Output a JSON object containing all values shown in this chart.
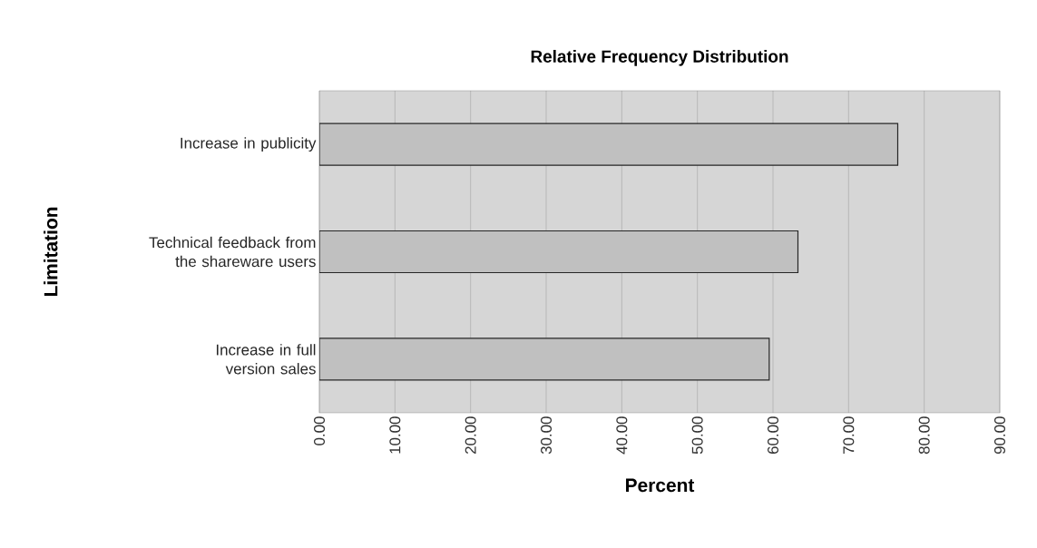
{
  "chart_data": {
    "type": "bar",
    "orientation": "horizontal",
    "title": "Relative Frequency Distribution",
    "xlabel": "Percent",
    "ylabel": "Limitation",
    "categories": [
      "Increase in publicity",
      "Technical feedback from the shareware users",
      "Increase in full version sales"
    ],
    "values": [
      76.5,
      63.3,
      59.5
    ],
    "color": "#c0c0c0",
    "xlim": [
      0,
      90
    ],
    "xticks": [
      {
        "value": 0,
        "label": "0.00"
      },
      {
        "value": 10,
        "label": "10.00"
      },
      {
        "value": 20,
        "label": "20.00"
      },
      {
        "value": 30,
        "label": "30.00"
      },
      {
        "value": 40,
        "label": "40.00"
      },
      {
        "value": 50,
        "label": "50.00"
      },
      {
        "value": 60,
        "label": "60.00"
      },
      {
        "value": 70,
        "label": "70.00"
      },
      {
        "value": 80,
        "label": "80.00"
      },
      {
        "value": 90,
        "label": "90.00"
      }
    ],
    "grid": "x"
  }
}
